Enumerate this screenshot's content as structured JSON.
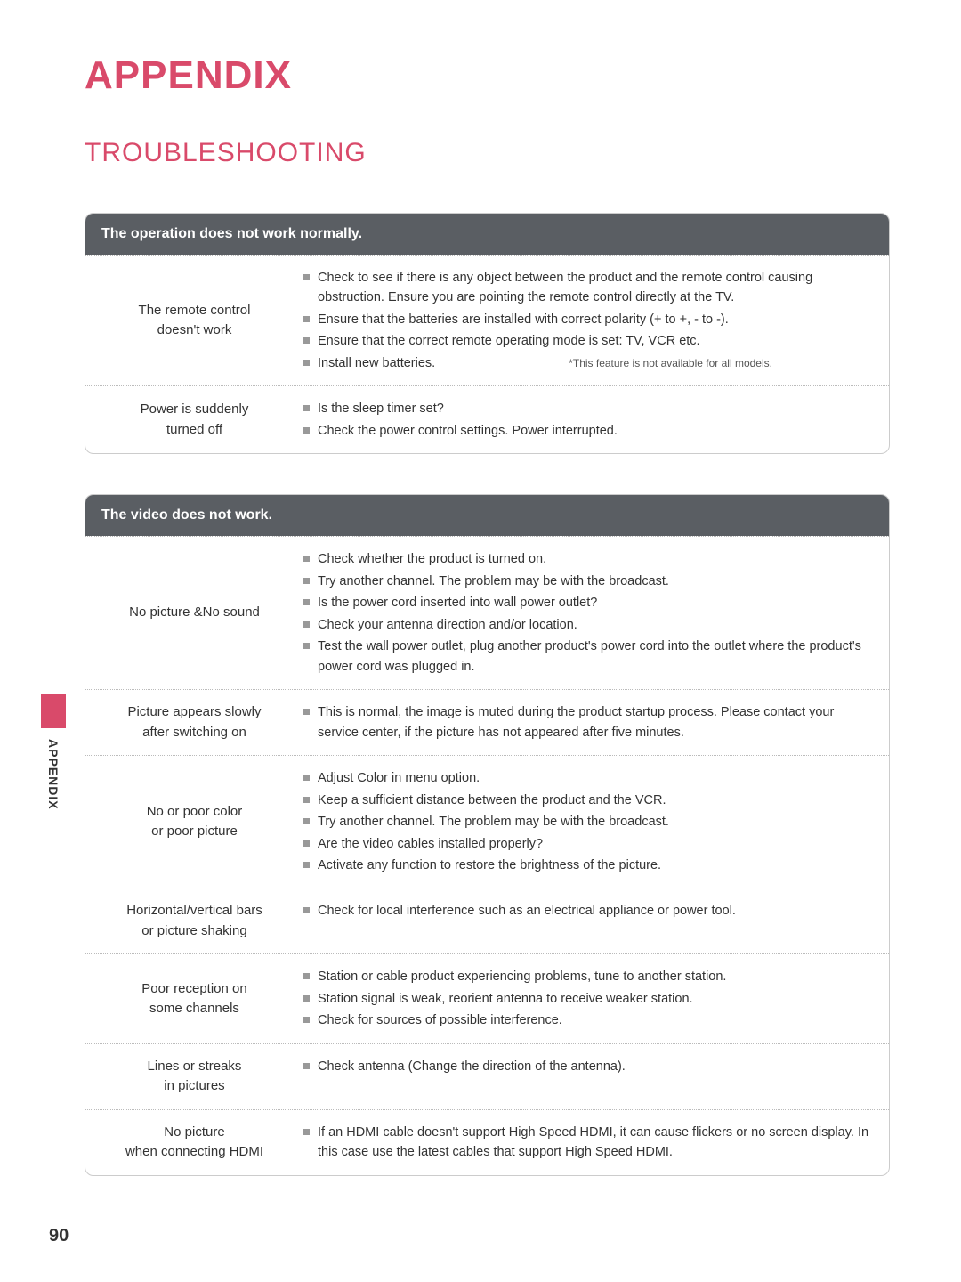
{
  "page": {
    "mainHeading": "APPENDIX",
    "sectionHeading": "TROUBLESHOOTING",
    "sideTabLabel": "APPENDIX",
    "pageNumber": "90"
  },
  "colors": {
    "accent": "#d94a6a",
    "headerBg": "#5a5e63",
    "headerText": "#ffffff",
    "bodyText": "#333333",
    "bullet": "#999999",
    "border": "#cccccc"
  },
  "tables": [
    {
      "header": "The operation does not work normally.",
      "rows": [
        {
          "label": "The remote control\ndoesn't work",
          "items": [
            "Check to see if there is any object between the product and the remote control causing obstruction. Ensure you are pointing the remote control directly at the TV.",
            "Ensure that the batteries are installed with correct polarity (+ to +, - to -).",
            "Ensure that the correct remote operating mode is set: TV, VCR etc."
          ],
          "lastLine": {
            "text": "Install new batteries.",
            "footnote": "*This feature is not available for all models."
          }
        },
        {
          "label": "Power is suddenly\nturned off",
          "items": [
            "Is the sleep timer set?",
            "Check the power control settings. Power interrupted."
          ]
        }
      ]
    },
    {
      "header": "The video does not work.",
      "rows": [
        {
          "label": "No picture &No sound",
          "items": [
            "Check whether the product is turned on.",
            "Try another channel. The problem may be with the broadcast.",
            "Is the power cord inserted into wall power outlet?",
            "Check your antenna direction and/or location.",
            "Test the wall power outlet, plug another product's power cord into the outlet where the product's power cord was plugged in."
          ]
        },
        {
          "label": "Picture appears slowly\nafter switching on",
          "items": [
            "This is normal, the image is muted during the product startup process. Please contact your service center, if the picture has not appeared after five minutes."
          ]
        },
        {
          "label": "No or poor color\nor poor picture",
          "items": [
            "Adjust Color in menu option.",
            "Keep a sufficient distance between the product and the VCR.",
            "Try another channel. The problem may be with the broadcast.",
            "Are the video cables installed properly?",
            "Activate any function to restore the brightness of the picture."
          ]
        },
        {
          "label": "Horizontal/vertical bars\nor picture shaking",
          "items": [
            "Check for local interference such as an electrical appliance or power tool."
          ]
        },
        {
          "label": "Poor reception on\nsome channels",
          "items": [
            "Station or cable product experiencing problems, tune to another station.",
            "Station signal is weak, reorient antenna to receive weaker station.",
            "Check for sources of possible interference."
          ]
        },
        {
          "label": "Lines or streaks\nin pictures",
          "items": [
            "Check antenna (Change the direction of the antenna)."
          ]
        },
        {
          "label": "No picture\nwhen connecting HDMI",
          "items": [
            "If an HDMI cable doesn't support High Speed HDMI, it can cause flickers or no screen display. In this case use the latest cables that support High Speed HDMI."
          ]
        }
      ]
    }
  ]
}
